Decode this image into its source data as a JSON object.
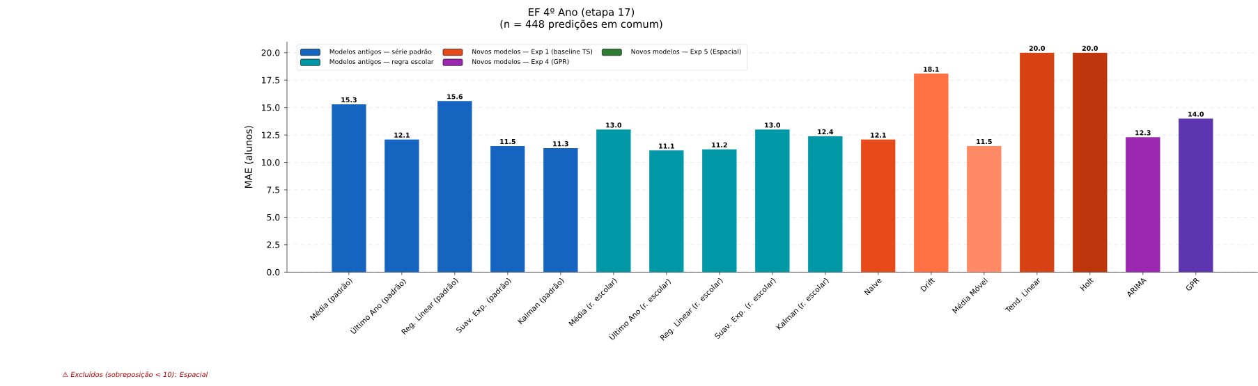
{
  "chart_data": {
    "type": "bar",
    "title": "EF 4º Ano (etapa 17)",
    "subtitle": "(n = 448 predições em comum)",
    "ylabel": "MAE (alunos)",
    "categories": [
      "Média (padrão)",
      "Último Ano (padrão)",
      "Reg. Linear (padrão)",
      "Suav. Exp. (padrão)",
      "Kalman (padrão)",
      "Média (r. escolar)",
      "Último Ano (r. escolar)",
      "Reg. Linear (r. escolar)",
      "Suav. Exp. (r. escolar)",
      "Kalman (r. escolar)",
      "Naive",
      "Drift",
      "Média Móvel",
      "Tend. Linear",
      "Holt",
      "ARIMA",
      "GPR"
    ],
    "series": [
      {
        "name": "Modelos antigos — série padrão",
        "color": "#1565c0",
        "values": [
          15.3,
          12.1,
          15.6,
          11.5,
          11.3,
          null,
          null,
          null,
          null,
          null,
          null,
          null,
          null,
          null,
          null,
          null,
          null
        ],
        "value_labels": [
          "15.3",
          "12.1",
          "15.6",
          "11.5",
          "11.3",
          null,
          null,
          null,
          null,
          null,
          null,
          null,
          null,
          null,
          null,
          null,
          null
        ]
      },
      {
        "name": "Modelos antigos — regra escolar",
        "color": "#0097a7",
        "values": [
          null,
          null,
          null,
          null,
          null,
          13.0,
          11.1,
          11.2,
          13.0,
          12.4,
          null,
          null,
          null,
          null,
          null,
          null,
          null
        ],
        "value_labels": [
          null,
          null,
          null,
          null,
          null,
          "13.0",
          "11.1",
          "11.2",
          "13.0",
          "12.4",
          null,
          null,
          null,
          null,
          null,
          null,
          null
        ]
      },
      {
        "name": "Novos modelos — Exp 1 (baseline TS)",
        "color": "#e64a19",
        "colors": [
          null,
          null,
          null,
          null,
          null,
          null,
          null,
          null,
          null,
          null,
          "#e64a19",
          "#ff7043",
          "#ff8a65",
          "#d84315",
          "#bf360c",
          null,
          null
        ],
        "values": [
          null,
          null,
          null,
          null,
          null,
          null,
          null,
          null,
          null,
          null,
          12.1,
          18.1,
          11.5,
          20.0,
          20.0,
          null,
          null
        ],
        "value_labels": [
          null,
          null,
          null,
          null,
          null,
          null,
          null,
          null,
          null,
          null,
          "12.1",
          "18.1",
          "11.5",
          "20.0",
          "20.0",
          null,
          null
        ]
      },
      {
        "name": "Novos modelos — Exp 4 (GPR)",
        "color": "#9c27b0",
        "colors": [
          null,
          null,
          null,
          null,
          null,
          null,
          null,
          null,
          null,
          null,
          null,
          null,
          null,
          null,
          null,
          "#9c27b0",
          "#5e35b1"
        ],
        "values": [
          null,
          null,
          null,
          null,
          null,
          null,
          null,
          null,
          null,
          null,
          null,
          null,
          null,
          null,
          null,
          12.3,
          14.0
        ],
        "value_labels": [
          null,
          null,
          null,
          null,
          null,
          null,
          null,
          null,
          null,
          null,
          null,
          null,
          null,
          null,
          null,
          "12.3",
          "14.0"
        ]
      },
      {
        "name": "Novos modelos — Exp 5 (Espacial)",
        "color": "#2e7d32",
        "values": [
          null,
          null,
          null,
          null,
          null,
          null,
          null,
          null,
          null,
          null,
          null,
          null,
          null,
          null,
          null,
          null,
          null
        ]
      }
    ],
    "ylim": [
      0,
      21
    ],
    "yticks": [
      {
        "value": 0,
        "label": "0.0"
      },
      {
        "value": 2.5,
        "label": "2.5"
      },
      {
        "value": 5,
        "label": "5.0"
      },
      {
        "value": 7.5,
        "label": "7.5"
      },
      {
        "value": 10,
        "label": "10.0"
      },
      {
        "value": 12.5,
        "label": "12.5"
      },
      {
        "value": 15,
        "label": "15.0"
      },
      {
        "value": 17.5,
        "label": "17.5"
      },
      {
        "value": 20,
        "label": "20.0"
      }
    ],
    "grid": "y",
    "legend": "top left",
    "annotations": [
      "⚠ Excluídos (sobreposição < 10): Espacial"
    ]
  }
}
